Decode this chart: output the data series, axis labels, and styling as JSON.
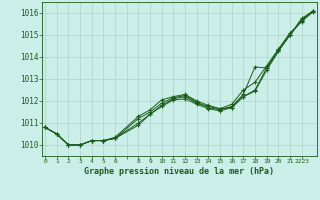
{
  "title": "Graphe pression niveau de la mer (hPa)",
  "bg_color": "#cceee8",
  "grid_color": "#aad4cc",
  "line_color": "#1a5c1a",
  "ylim": [
    1009.5,
    1016.5
  ],
  "xlim": [
    -0.3,
    23.3
  ],
  "yticks": [
    1010,
    1011,
    1012,
    1013,
    1014,
    1015,
    1016
  ],
  "xtick_labels": [
    "0",
    "1",
    "2",
    "3",
    "4",
    "5",
    "6",
    "",
    "8",
    "9",
    "10",
    "11",
    "12",
    "13",
    "14",
    "15",
    "16",
    "17",
    "18",
    "19",
    "20",
    "21",
    "2223"
  ],
  "xtick_pos": [
    0,
    1,
    2,
    3,
    4,
    5,
    6,
    7,
    8,
    9,
    10,
    11,
    12,
    13,
    14,
    15,
    16,
    17,
    18,
    19,
    20,
    21,
    22
  ],
  "series": [
    {
      "x": [
        0,
        1,
        2,
        3,
        4,
        5,
        6,
        8,
        9,
        10,
        11,
        12,
        13,
        14,
        15,
        16,
        17,
        18,
        19,
        20,
        21,
        22,
        23
      ],
      "y": [
        1010.8,
        1010.5,
        1010.0,
        1010.0,
        1010.2,
        1010.2,
        1010.3,
        1011.0,
        1011.4,
        1011.8,
        1012.1,
        1012.2,
        1011.9,
        1011.75,
        1011.65,
        1011.7,
        1012.2,
        1012.5,
        1013.5,
        1014.3,
        1015.0,
        1015.7,
        1016.1
      ]
    },
    {
      "x": [
        0,
        1,
        2,
        3,
        4,
        5,
        6,
        8,
        9,
        10,
        11,
        12,
        13,
        14,
        15,
        16,
        17,
        18,
        19,
        20,
        21,
        22,
        23
      ],
      "y": [
        1010.8,
        1010.5,
        1010.0,
        1010.0,
        1010.2,
        1010.2,
        1010.3,
        1011.2,
        1011.5,
        1011.9,
        1012.15,
        1012.25,
        1011.95,
        1011.7,
        1011.6,
        1011.75,
        1012.3,
        1013.55,
        1013.5,
        1014.3,
        1015.0,
        1015.75,
        1016.1
      ]
    },
    {
      "x": [
        0,
        1,
        2,
        3,
        4,
        5,
        6,
        8,
        9,
        10,
        11,
        12,
        13,
        14,
        15,
        16,
        17,
        18,
        19,
        20,
        21,
        22,
        23
      ],
      "y": [
        1010.8,
        1010.5,
        1010.0,
        1010.0,
        1010.2,
        1010.2,
        1010.35,
        1011.3,
        1011.6,
        1012.05,
        1012.2,
        1012.3,
        1012.0,
        1011.8,
        1011.65,
        1011.85,
        1012.5,
        1012.85,
        1013.6,
        1014.35,
        1015.1,
        1015.6,
        1016.1
      ]
    },
    {
      "x": [
        0,
        1,
        2,
        3,
        4,
        5,
        6,
        8,
        9,
        10,
        11,
        12,
        13,
        14,
        15,
        16,
        17,
        18,
        19,
        20,
        21,
        22,
        23
      ],
      "y": [
        1010.8,
        1010.5,
        1010.0,
        1010.0,
        1010.2,
        1010.2,
        1010.3,
        1010.9,
        1011.4,
        1011.75,
        1012.05,
        1012.1,
        1011.85,
        1011.65,
        1011.55,
        1011.7,
        1012.2,
        1012.45,
        1013.4,
        1014.25,
        1015.0,
        1015.65,
        1016.05
      ]
    }
  ]
}
